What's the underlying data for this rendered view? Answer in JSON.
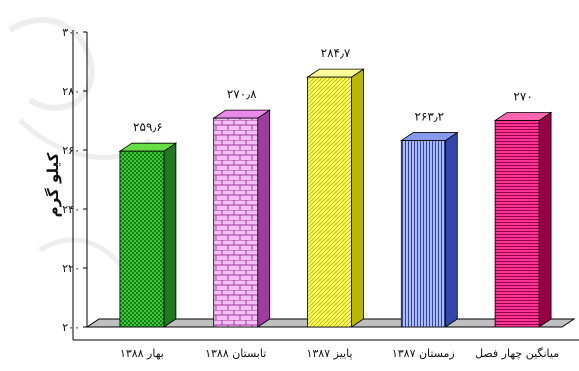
{
  "chart_data": {
    "type": "bar",
    "title": "",
    "xlabel": "",
    "ylabel": "کیلو گرم",
    "ylim": [
      200,
      300
    ],
    "yticks": [
      "۲۰۰",
      "۲۲۰",
      "۲۴۰",
      "۲۶۰",
      "۲۸۰",
      "۳۰۰"
    ],
    "ytick_values": [
      200,
      220,
      240,
      260,
      280,
      300
    ],
    "grid": false,
    "legend": "none",
    "three_d": true,
    "categories": [
      "بهار ۱۳۸۸",
      "تابستان ۱۳۸۸",
      "پاییز ۱۳۸۷",
      "زمستان ۱۳۸۷",
      "میانگین چهار فصل"
    ],
    "values": [
      259.6,
      270.8,
      284.7,
      263.2,
      270
    ],
    "value_labels": [
      "۲۵۹٫۶",
      "۲۷۰٫۸",
      "۲۸۴٫۷",
      "۲۶۳٫۲",
      "۲۷۰"
    ],
    "bar_styles": [
      {
        "pattern": "checker",
        "front": "#33cc33",
        "dark": "#1f7a1f",
        "light": "#66dd44"
      },
      {
        "pattern": "brick",
        "front": "#f4bff4",
        "dark": "#a03ca0",
        "light": "#e88ae8"
      },
      {
        "pattern": "diagonal",
        "front": "#ffff66",
        "dark": "#b8b800",
        "light": "#ffff99"
      },
      {
        "pattern": "vertical",
        "front": "#aabbff",
        "dark": "#3344aa",
        "light": "#8899ee"
      },
      {
        "pattern": "horizontal",
        "front": "#ff3399",
        "dark": "#990044",
        "light": "#ff66b0"
      }
    ],
    "floor_color": "#c0c0c0"
  }
}
